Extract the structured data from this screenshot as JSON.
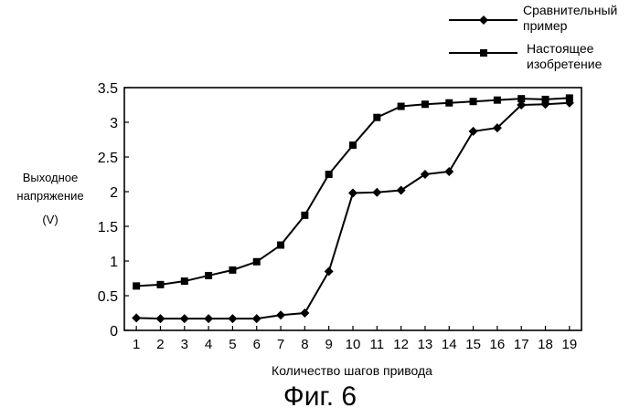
{
  "figure": {
    "caption": "Фиг. 6"
  },
  "chart_data": {
    "type": "line",
    "title": "",
    "xlabel": "Количество шагов привода",
    "ylabel_lines": [
      "Выходное",
      "напряжение",
      "(V)"
    ],
    "x": [
      1,
      2,
      3,
      4,
      5,
      6,
      7,
      8,
      9,
      10,
      11,
      12,
      13,
      14,
      15,
      16,
      17,
      18,
      19
    ],
    "xlim": [
      0.5,
      19.5
    ],
    "ylim": [
      0,
      3.5
    ],
    "yticks": [
      "0",
      "0.5",
      "1",
      "1.5",
      "2",
      "2.5",
      "3",
      "3.5"
    ],
    "xticks": [
      "1",
      "2",
      "3",
      "4",
      "5",
      "6",
      "7",
      "8",
      "9",
      "10",
      "11",
      "12",
      "13",
      "14",
      "15",
      "16",
      "17",
      "18",
      "19"
    ],
    "grid": false,
    "legend_position": "top-right",
    "series": [
      {
        "name_lines": [
          "Сравнительный",
          "пример"
        ],
        "marker": "diamond",
        "color": "#000000",
        "values": [
          0.18,
          0.17,
          0.17,
          0.17,
          0.17,
          0.17,
          0.22,
          0.25,
          0.85,
          1.98,
          1.99,
          2.02,
          2.25,
          2.29,
          2.87,
          2.92,
          3.25,
          3.26,
          3.28
        ]
      },
      {
        "name_lines": [
          "Настоящее",
          "изобретение"
        ],
        "marker": "square",
        "color": "#000000",
        "values": [
          0.64,
          0.66,
          0.71,
          0.79,
          0.87,
          0.99,
          1.23,
          1.66,
          2.25,
          2.67,
          3.07,
          3.23,
          3.26,
          3.28,
          3.3,
          3.32,
          3.34,
          3.33,
          3.35
        ]
      }
    ]
  }
}
